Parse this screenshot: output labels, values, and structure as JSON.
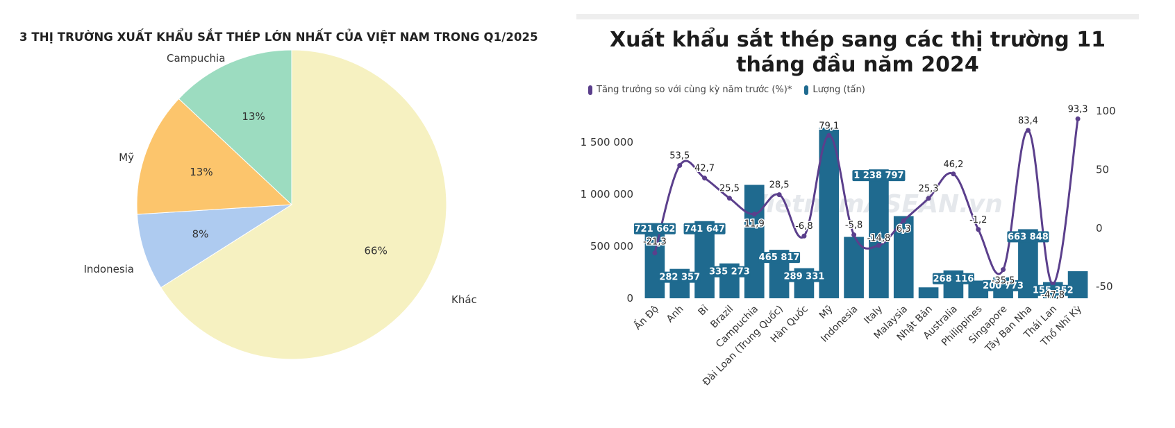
{
  "chart_data": [
    {
      "type": "pie",
      "title": "3 THỊ TRƯỜNG XUẤT KHẨU SẮT THÉP LỚN NHẤT CỦA VIỆT NAM TRONG Q1/2025",
      "slices": [
        {
          "label": "Khác",
          "value": 66,
          "pct_label": "66%",
          "color": "#f6f1c1"
        },
        {
          "label": "Indonesia",
          "value": 8,
          "pct_label": "8%",
          "color": "#aecbf0"
        },
        {
          "label": "Mỹ",
          "value": 13,
          "pct_label": "13%",
          "color": "#fcc56c"
        },
        {
          "label": "Campuchia",
          "value": 13,
          "pct_label": "13%",
          "color": "#9cdcc0"
        }
      ]
    },
    {
      "type": "bar+line",
      "title": "Xuất khẩu sắt thép sang các thị trường 11 tháng đầu năm 2024",
      "legend": [
        {
          "name": "Tăng trưởng so với cùng kỳ năm trước (%)*",
          "color": "#5b3f8c"
        },
        {
          "name": "Lượng (tấn)",
          "color": "#1f6a8f"
        }
      ],
      "categories": [
        "Ấn Độ",
        "Anh",
        "Bỉ",
        "Brazil",
        "Campuchia",
        "Đài Loan (Trung Quốc)",
        "Hàn Quốc",
        "Mỹ",
        "Indonesia",
        "Italy",
        "Malaysia",
        "Nhật Bản",
        "Australia",
        "Philippines",
        "Singapore",
        "Tây Ban Nha",
        "Thái Lan",
        "Thổ Nhĩ Kỳ"
      ],
      "series": [
        {
          "name": "Lượng (tấn)",
          "axis": "left",
          "values": [
            721662,
            282357,
            741647,
            335273,
            1090000,
            465817,
            289331,
            1640000,
            590000,
            1238797,
            790000,
            105000,
            268116,
            170000,
            200773,
            663848,
            155352,
            260000
          ],
          "labels": [
            "721 662",
            "282 357",
            "741 647",
            "335 273",
            "",
            "465 817",
            "289 331",
            "",
            "",
            "1 238 797",
            "",
            "",
            "268 116",
            "",
            "200 773",
            "663 848",
            "155 352",
            ""
          ]
        },
        {
          "name": "Tăng trưởng so với cùng kỳ năm trước (%)*",
          "axis": "right",
          "values": [
            -21.3,
            53.5,
            42.7,
            25.5,
            11.9,
            28.5,
            -6.8,
            79.1,
            -5.8,
            -14.8,
            6.3,
            25.3,
            46.2,
            -1.2,
            -35.5,
            83.4,
            -47.8,
            93.3
          ],
          "labels": [
            "-21,3",
            "53,5",
            "42,7",
            "25,5",
            "11,9",
            "28,5",
            "-6,8",
            "79,1",
            "-5,8",
            "-14,8",
            "6,3",
            "25,3",
            "46,2",
            "-1,2",
            "-35,5",
            "83,4",
            "-47,8",
            "93,3"
          ]
        }
      ],
      "y_left": {
        "min": 0,
        "max": 1800000,
        "ticks": [
          0,
          500000,
          1000000,
          1500000
        ],
        "tick_labels": [
          "0",
          "500 000",
          "1 000 000",
          "1 500 000"
        ]
      },
      "y_right": {
        "min": -60,
        "max": 100,
        "ticks": [
          -50,
          0,
          50,
          100
        ],
        "tick_labels": [
          "-50",
          "0",
          "50",
          "100"
        ]
      },
      "watermark": "VietnamASEAN.vn"
    }
  ]
}
